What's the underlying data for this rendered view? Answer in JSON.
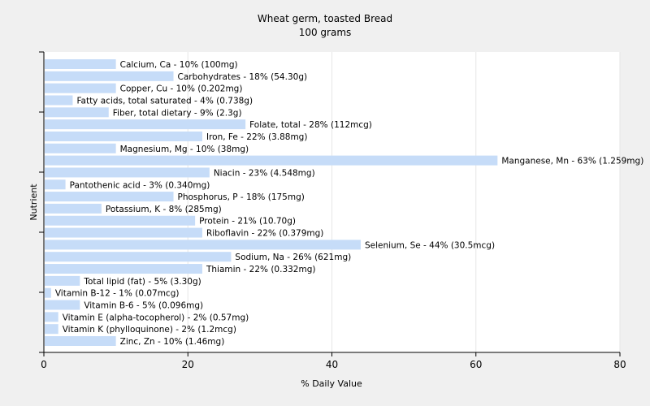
{
  "chart_data": {
    "type": "bar",
    "orientation": "horizontal",
    "title": "Wheat germ, toasted Bread",
    "subtitle": "100 grams",
    "xlabel": "% Daily Value",
    "ylabel": "Nutrient",
    "xlim": [
      0,
      80
    ],
    "xticks": [
      0,
      20,
      40,
      60,
      80
    ],
    "grid": true,
    "colors": {
      "bar": "#c6dcf8",
      "background": "#f0f0f0",
      "plot_background": "#ffffff",
      "grid": "#e6e6e6",
      "axis": "#000000"
    },
    "bars": [
      {
        "category": "Calcium, Ca",
        "value": 10,
        "label": "Calcium, Ca - 10% (100mg)"
      },
      {
        "category": "Carbohydrates",
        "value": 18,
        "label": "Carbohydrates - 18% (54.30g)"
      },
      {
        "category": "Copper, Cu",
        "value": 10,
        "label": "Copper, Cu - 10% (0.202mg)"
      },
      {
        "category": "Fatty acids, total saturated",
        "value": 4,
        "label": "Fatty acids, total saturated - 4% (0.738g)"
      },
      {
        "category": "Fiber, total dietary",
        "value": 9,
        "label": "Fiber, total dietary - 9% (2.3g)"
      },
      {
        "category": "Folate, total",
        "value": 28,
        "label": "Folate, total - 28% (112mcg)"
      },
      {
        "category": "Iron, Fe",
        "value": 22,
        "label": "Iron, Fe - 22% (3.88mg)"
      },
      {
        "category": "Magnesium, Mg",
        "value": 10,
        "label": "Magnesium, Mg - 10% (38mg)"
      },
      {
        "category": "Manganese, Mn",
        "value": 63,
        "label": "Manganese, Mn - 63% (1.259mg)"
      },
      {
        "category": "Niacin",
        "value": 23,
        "label": "Niacin - 23% (4.548mg)"
      },
      {
        "category": "Pantothenic acid",
        "value": 3,
        "label": "Pantothenic acid - 3% (0.340mg)"
      },
      {
        "category": "Phosphorus, P",
        "value": 18,
        "label": "Phosphorus, P - 18% (175mg)"
      },
      {
        "category": "Potassium, K",
        "value": 8,
        "label": "Potassium, K - 8% (285mg)"
      },
      {
        "category": "Protein",
        "value": 21,
        "label": "Protein - 21% (10.70g)"
      },
      {
        "category": "Riboflavin",
        "value": 22,
        "label": "Riboflavin - 22% (0.379mg)"
      },
      {
        "category": "Selenium, Se",
        "value": 44,
        "label": "Selenium, Se - 44% (30.5mcg)"
      },
      {
        "category": "Sodium, Na",
        "value": 26,
        "label": "Sodium, Na - 26% (621mg)"
      },
      {
        "category": "Thiamin",
        "value": 22,
        "label": "Thiamin - 22% (0.332mg)"
      },
      {
        "category": "Total lipid (fat)",
        "value": 5,
        "label": "Total lipid (fat) - 5% (3.30g)"
      },
      {
        "category": "Vitamin B-12",
        "value": 1,
        "label": "Vitamin B-12 - 1% (0.07mcg)"
      },
      {
        "category": "Vitamin B-6",
        "value": 5,
        "label": "Vitamin B-6 - 5% (0.096mg)"
      },
      {
        "category": "Vitamin E (alpha-tocopherol)",
        "value": 2,
        "label": "Vitamin E (alpha-tocopherol) - 2% (0.57mg)"
      },
      {
        "category": "Vitamin K (phylloquinone)",
        "value": 2,
        "label": "Vitamin K (phylloquinone) - 2% (1.2mcg)"
      },
      {
        "category": "Zinc, Zn",
        "value": 10,
        "label": "Zinc, Zn - 10% (1.46mg)"
      }
    ]
  }
}
